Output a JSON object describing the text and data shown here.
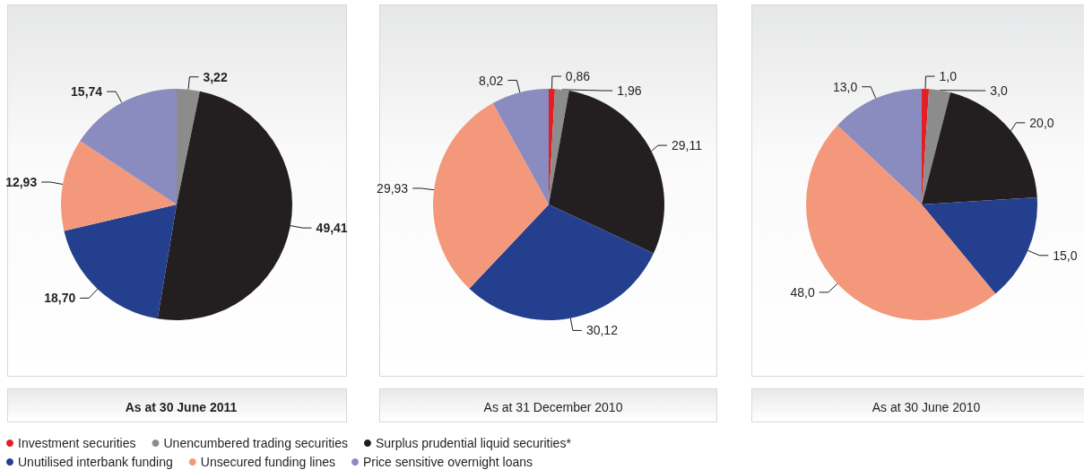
{
  "chart_data": {
    "type": "pie",
    "categories": [
      "Investment securities",
      "Unencumbered trading securities",
      "Surplus prudential liquid securities*",
      "Unutilised interbank funding",
      "Unsecured funding lines",
      "Price sensitive overnight loans"
    ],
    "colors": [
      "#e31e24",
      "#8c8c8c",
      "#231f20",
      "#253f8f",
      "#f4987b",
      "#8a8bbf"
    ],
    "series": [
      {
        "name": "As at 30 June 2011",
        "values": [
          null,
          3.22,
          49.41,
          18.7,
          12.93,
          15.74
        ],
        "value_labels": [
          null,
          "3,22",
          "49,41",
          "18,70",
          "12,93",
          "15,74"
        ]
      },
      {
        "name": "As at 31 December 2010",
        "values": [
          0.86,
          1.96,
          29.11,
          30.12,
          29.93,
          8.02
        ],
        "value_labels": [
          "0,86",
          "1,96",
          "29,11",
          "30,12",
          "29,93",
          "8,02"
        ]
      },
      {
        "name": "As at 30 June 2010",
        "values": [
          1.0,
          3.0,
          20.0,
          15.0,
          48.0,
          13.0
        ],
        "value_labels": [
          "1,0",
          "3,0",
          "20,0",
          "15,0",
          "48,0",
          "13,0"
        ]
      }
    ],
    "legend": "bottom left"
  }
}
